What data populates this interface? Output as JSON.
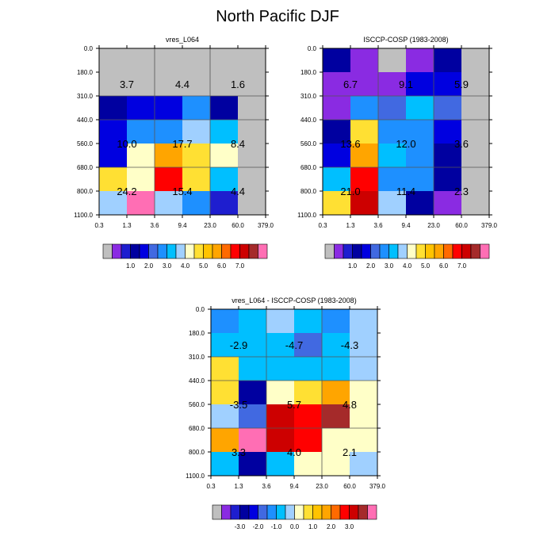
{
  "title": "North Pacific DJF",
  "colors": {
    "palette": [
      "#bfbfbf",
      "#8a2be2",
      "#1e1ecf",
      "#0000a0",
      "#0000e0",
      "#4169e1",
      "#1e90ff",
      "#00bfff",
      "#a0d0ff",
      "#ffffc8",
      "#ffe033",
      "#ffc300",
      "#ffa500",
      "#ff6a00",
      "#ff0000",
      "#cd0000",
      "#a52a2a",
      "#ff6eb4"
    ],
    "grid": "#555555",
    "axis": "#000000"
  },
  "colorbar_labels": {
    "absolute": [
      "1.0",
      "2.0",
      "3.0",
      "4.0",
      "5.0",
      "6.0",
      "7.0"
    ],
    "difference": [
      "-3.0",
      "-2.0",
      "-1.0",
      "0.0",
      "1.0",
      "2.0",
      "3.0"
    ]
  },
  "chart_data": [
    {
      "type": "heatmap",
      "title": "vres_L064",
      "x_ticks": [
        "0.3",
        "1.3",
        "3.6",
        "9.4",
        "23.0",
        "60.0",
        "379.0"
      ],
      "y_ticks": [
        "0.0",
        "180.0",
        "310.0",
        "440.0",
        "560.0",
        "680.0",
        "800.0",
        "1100.0"
      ],
      "cells": [
        [
          0,
          0,
          0,
          0,
          0,
          0
        ],
        [
          0,
          0,
          0,
          0,
          0,
          0
        ],
        [
          3,
          4,
          4,
          6,
          3,
          0
        ],
        [
          4,
          6,
          6,
          8,
          7,
          0
        ],
        [
          4,
          9,
          12,
          10,
          9,
          0
        ],
        [
          10,
          9,
          14,
          10,
          7,
          0
        ],
        [
          8,
          17,
          8,
          6,
          2,
          0
        ]
      ],
      "labels": [
        "3.7",
        "4.4",
        "1.6",
        "10.0",
        "17.7",
        "8.4",
        "24.2",
        "15.4",
        "4.4"
      ],
      "colorbar": "absolute"
    },
    {
      "type": "heatmap",
      "title": "ISCCP-COSP (1983-2008)",
      "x_ticks": [
        "0.3",
        "1.3",
        "3.6",
        "9.4",
        "23.0",
        "60.0",
        "379.0"
      ],
      "y_ticks": [
        "0.0",
        "180.0",
        "310.0",
        "440.0",
        "560.0",
        "680.0",
        "800.0",
        "1100.0"
      ],
      "cells": [
        [
          3,
          1,
          0,
          1,
          3,
          0
        ],
        [
          1,
          1,
          1,
          4,
          4,
          0
        ],
        [
          1,
          6,
          5,
          7,
          5,
          0
        ],
        [
          3,
          10,
          6,
          6,
          4,
          0
        ],
        [
          4,
          12,
          7,
          6,
          3,
          0
        ],
        [
          7,
          14,
          6,
          6,
          3,
          0
        ],
        [
          10,
          15,
          8,
          3,
          1,
          0
        ]
      ],
      "labels": [
        "6.7",
        "9.1",
        "5.9",
        "13.6",
        "12.0",
        "3.6",
        "21.0",
        "11.4",
        "2.3"
      ],
      "colorbar": "absolute"
    },
    {
      "type": "heatmap",
      "title": "vres_L064 - ISCCP-COSP (1983-2008)",
      "x_ticks": [
        "0.3",
        "1.3",
        "3.6",
        "9.4",
        "23.0",
        "60.0",
        "379.0"
      ],
      "y_ticks": [
        "0.0",
        "180.0",
        "310.0",
        "440.0",
        "560.0",
        "680.0",
        "800.0",
        "1100.0"
      ],
      "cells": [
        [
          6,
          7,
          8,
          7,
          6,
          8
        ],
        [
          7,
          7,
          7,
          5,
          7,
          8
        ],
        [
          10,
          7,
          7,
          7,
          7,
          8
        ],
        [
          10,
          3,
          9,
          10,
          12,
          9
        ],
        [
          8,
          5,
          15,
          14,
          16,
          9
        ],
        [
          12,
          17,
          15,
          14,
          9,
          9
        ],
        [
          7,
          3,
          7,
          9,
          9,
          8
        ]
      ],
      "labels": [
        "-2.9",
        "-4.7",
        "-4.3",
        "-3.5",
        "5.7",
        "4.8",
        "3.3",
        "4.0",
        "2.1"
      ],
      "colorbar": "difference"
    }
  ]
}
